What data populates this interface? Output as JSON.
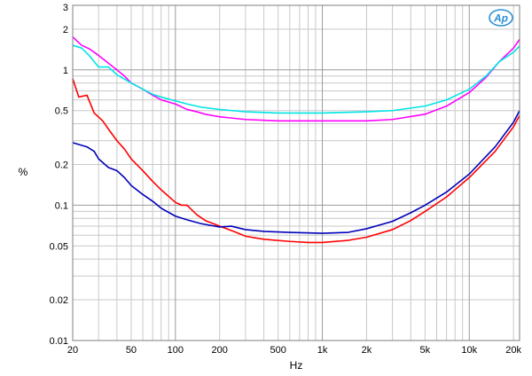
{
  "chart_data": {
    "type": "line",
    "title": "",
    "xlabel": "Hz",
    "ylabel": "%",
    "xscale": "log",
    "yscale": "log",
    "xlim": [
      20,
      22000
    ],
    "ylim": [
      0.01,
      3
    ],
    "grid": true,
    "legend": "none",
    "x_ticks": [
      {
        "value": 20,
        "label": "20"
      },
      {
        "value": 50,
        "label": "50"
      },
      {
        "value": 100,
        "label": "100"
      },
      {
        "value": 200,
        "label": "200"
      },
      {
        "value": 500,
        "label": "500"
      },
      {
        "value": 1000,
        "label": "1k"
      },
      {
        "value": 2000,
        "label": "2k"
      },
      {
        "value": 5000,
        "label": "5k"
      },
      {
        "value": 10000,
        "label": "10k"
      },
      {
        "value": 20000,
        "label": "20k"
      }
    ],
    "y_ticks": [
      {
        "value": 3,
        "label": "3"
      },
      {
        "value": 2,
        "label": "2"
      },
      {
        "value": 1,
        "label": "1"
      },
      {
        "value": 0.5,
        "label": "0.5"
      },
      {
        "value": 0.2,
        "label": "0.2"
      },
      {
        "value": 0.1,
        "label": "0.1"
      },
      {
        "value": 0.05,
        "label": "0.05"
      },
      {
        "value": 0.02,
        "label": "0.02"
      },
      {
        "value": 0.01,
        "label": "0.01"
      }
    ],
    "series": [
      {
        "color": "#ff00ff",
        "points": [
          [
            20,
            1.75
          ],
          [
            23,
            1.52
          ],
          [
            26,
            1.43
          ],
          [
            30,
            1.28
          ],
          [
            35,
            1.12
          ],
          [
            40,
            1.0
          ],
          [
            45,
            0.9
          ],
          [
            50,
            0.8
          ],
          [
            60,
            0.72
          ],
          [
            70,
            0.65
          ],
          [
            80,
            0.6
          ],
          [
            100,
            0.56
          ],
          [
            120,
            0.51
          ],
          [
            140,
            0.49
          ],
          [
            160,
            0.47
          ],
          [
            200,
            0.45
          ],
          [
            300,
            0.43
          ],
          [
            500,
            0.42
          ],
          [
            1000,
            0.42
          ],
          [
            2000,
            0.42
          ],
          [
            3000,
            0.43
          ],
          [
            5000,
            0.47
          ],
          [
            7000,
            0.54
          ],
          [
            10000,
            0.68
          ],
          [
            13000,
            0.88
          ],
          [
            16000,
            1.15
          ],
          [
            20000,
            1.45
          ],
          [
            22000,
            1.68
          ]
        ]
      },
      {
        "color": "#00e5e5",
        "points": [
          [
            20,
            1.52
          ],
          [
            23,
            1.45
          ],
          [
            26,
            1.27
          ],
          [
            30,
            1.05
          ],
          [
            35,
            1.05
          ],
          [
            40,
            0.92
          ],
          [
            50,
            0.8
          ],
          [
            60,
            0.72
          ],
          [
            70,
            0.66
          ],
          [
            80,
            0.63
          ],
          [
            100,
            0.59
          ],
          [
            120,
            0.56
          ],
          [
            150,
            0.53
          ],
          [
            200,
            0.51
          ],
          [
            300,
            0.49
          ],
          [
            500,
            0.48
          ],
          [
            1000,
            0.48
          ],
          [
            2000,
            0.49
          ],
          [
            3000,
            0.5
          ],
          [
            5000,
            0.54
          ],
          [
            7000,
            0.6
          ],
          [
            10000,
            0.72
          ],
          [
            13000,
            0.9
          ],
          [
            16000,
            1.15
          ],
          [
            20000,
            1.35
          ],
          [
            22000,
            1.5
          ]
        ]
      },
      {
        "color": "#ff0000",
        "points": [
          [
            20,
            0.86
          ],
          [
            22,
            0.63
          ],
          [
            25,
            0.65
          ],
          [
            28,
            0.48
          ],
          [
            32,
            0.42
          ],
          [
            36,
            0.35
          ],
          [
            40,
            0.3
          ],
          [
            45,
            0.26
          ],
          [
            50,
            0.22
          ],
          [
            60,
            0.18
          ],
          [
            70,
            0.15
          ],
          [
            80,
            0.13
          ],
          [
            100,
            0.105
          ],
          [
            110,
            0.1
          ],
          [
            120,
            0.1
          ],
          [
            140,
            0.085
          ],
          [
            160,
            0.077
          ],
          [
            200,
            0.07
          ],
          [
            250,
            0.064
          ],
          [
            300,
            0.059
          ],
          [
            400,
            0.056
          ],
          [
            600,
            0.054
          ],
          [
            800,
            0.053
          ],
          [
            1000,
            0.053
          ],
          [
            1500,
            0.055
          ],
          [
            2000,
            0.058
          ],
          [
            3000,
            0.066
          ],
          [
            4000,
            0.077
          ],
          [
            5000,
            0.09
          ],
          [
            7000,
            0.115
          ],
          [
            10000,
            0.16
          ],
          [
            15000,
            0.25
          ],
          [
            20000,
            0.38
          ],
          [
            22000,
            0.46
          ]
        ]
      },
      {
        "color": "#0000bb",
        "points": [
          [
            20,
            0.29
          ],
          [
            25,
            0.27
          ],
          [
            28,
            0.25
          ],
          [
            30,
            0.22
          ],
          [
            35,
            0.19
          ],
          [
            40,
            0.18
          ],
          [
            45,
            0.16
          ],
          [
            50,
            0.14
          ],
          [
            60,
            0.12
          ],
          [
            70,
            0.107
          ],
          [
            80,
            0.095
          ],
          [
            100,
            0.083
          ],
          [
            120,
            0.078
          ],
          [
            150,
            0.073
          ],
          [
            200,
            0.069
          ],
          [
            240,
            0.07
          ],
          [
            300,
            0.066
          ],
          [
            400,
            0.064
          ],
          [
            600,
            0.063
          ],
          [
            1000,
            0.062
          ],
          [
            1500,
            0.063
          ],
          [
            2000,
            0.067
          ],
          [
            3000,
            0.076
          ],
          [
            4000,
            0.088
          ],
          [
            5000,
            0.1
          ],
          [
            7000,
            0.125
          ],
          [
            10000,
            0.17
          ],
          [
            15000,
            0.27
          ],
          [
            20000,
            0.41
          ],
          [
            22000,
            0.5
          ]
        ]
      }
    ]
  },
  "logo": {
    "text": "AP",
    "color": "#2a8fd6"
  }
}
